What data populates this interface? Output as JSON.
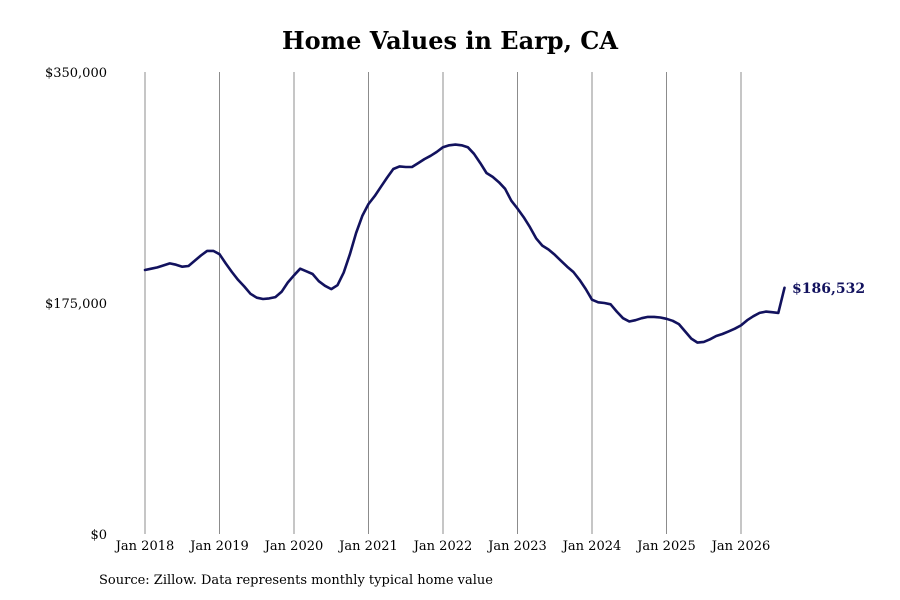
{
  "chart_data": {
    "type": "line",
    "title": "Home Values in Earp, CA",
    "xlabel": "",
    "ylabel": "",
    "ylim": [
      0,
      350000
    ],
    "y_ticks": [
      "$0",
      "$175,000",
      "$350,000"
    ],
    "y_tick_values": [
      0,
      175000,
      350000
    ],
    "x_ticks": [
      "Jan 2018",
      "Jan 2019",
      "Jan 2020",
      "Jan 2021",
      "Jan 2022",
      "Jan 2023",
      "Jan 2024",
      "Jan 2025",
      "Jan 2026"
    ],
    "x_tick_years": [
      2018,
      2019,
      2020,
      2021,
      2022,
      2023,
      2024,
      2025,
      2026
    ],
    "grid": "vertical",
    "line_color": "#12125e",
    "end_label": "$186,532",
    "series": [
      {
        "x": [
          "2018-01",
          "2018-02",
          "2018-03",
          "2018-04",
          "2018-05",
          "2018-06",
          "2018-07",
          "2018-08",
          "2018-09",
          "2018-10",
          "2018-11",
          "2018-12",
          "2019-01",
          "2019-02",
          "2019-03",
          "2019-04",
          "2019-05",
          "2019-06",
          "2019-07",
          "2019-08",
          "2019-09",
          "2019-10",
          "2019-11",
          "2019-12",
          "2020-01",
          "2020-02",
          "2020-03",
          "2020-04",
          "2020-05",
          "2020-06",
          "2020-07",
          "2020-08",
          "2020-09",
          "2020-10",
          "2020-11",
          "2020-12",
          "2021-01",
          "2021-02",
          "2021-03",
          "2021-04",
          "2021-05",
          "2021-06",
          "2021-07",
          "2021-08",
          "2021-09",
          "2021-10",
          "2021-11",
          "2021-12",
          "2022-01",
          "2022-02",
          "2022-03",
          "2022-04",
          "2022-05",
          "2022-06",
          "2022-07",
          "2022-08",
          "2022-09",
          "2022-10",
          "2022-11",
          "2022-12",
          "2023-01",
          "2023-02",
          "2023-03",
          "2023-04",
          "2023-05",
          "2023-06",
          "2023-07",
          "2023-08",
          "2023-09",
          "2023-10",
          "2023-11",
          "2023-12",
          "2024-01",
          "2024-02",
          "2024-03",
          "2024-04",
          "2024-05",
          "2024-06",
          "2024-07",
          "2024-08",
          "2024-09",
          "2024-10",
          "2024-11",
          "2024-12",
          "2025-01",
          "2025-02",
          "2025-03",
          "2025-04",
          "2025-05",
          "2025-06",
          "2025-07",
          "2025-08",
          "2025-09",
          "2025-10",
          "2025-11",
          "2025-12",
          "2026-01",
          "2026-02",
          "2026-03",
          "2026-04",
          "2026-05",
          "2026-06",
          "2026-07",
          "2026-08"
        ],
        "values": [
          200000,
          201000,
          202000,
          203500,
          205000,
          204000,
          202500,
          203000,
          207000,
          211000,
          214500,
          214500,
          212000,
          205000,
          198500,
          192500,
          187500,
          182000,
          179000,
          178000,
          178500,
          179500,
          183500,
          190500,
          196000,
          201000,
          199000,
          197000,
          191500,
          188000,
          185500,
          188500,
          198000,
          212000,
          228000,
          241000,
          250000,
          256000,
          263000,
          270000,
          276500,
          278500,
          278000,
          278000,
          281000,
          284000,
          286500,
          289500,
          293000,
          294500,
          295000,
          294500,
          293000,
          288000,
          281000,
          273500,
          270500,
          266500,
          261500,
          252500,
          246500,
          240000,
          232500,
          224000,
          218500,
          215500,
          211500,
          207000,
          202500,
          198500,
          192500,
          185500,
          177500,
          175500,
          175000,
          174000,
          168500,
          163500,
          161000,
          162000,
          163500,
          164500,
          164500,
          164000,
          163000,
          161500,
          159000,
          153500,
          148000,
          145000,
          145500,
          147500,
          150000,
          151500,
          153500,
          155500,
          158000,
          162000,
          165000,
          167500,
          168500,
          168000,
          167500,
          186532
        ]
      }
    ]
  }
}
